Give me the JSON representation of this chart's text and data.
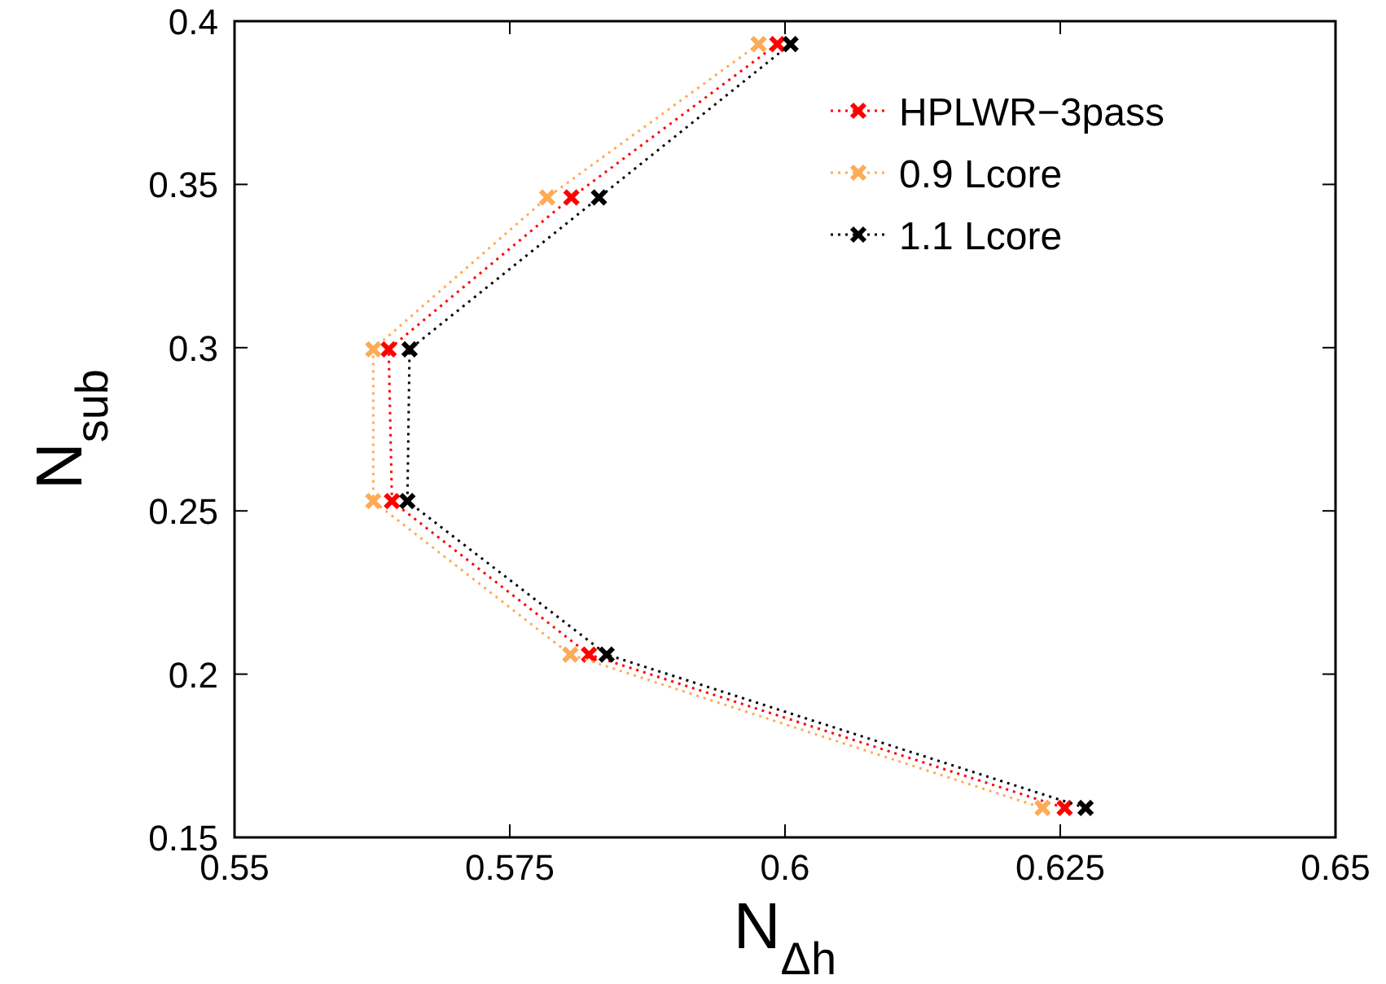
{
  "chart_data": {
    "type": "line",
    "xlabel": "N$_{Δh}$",
    "ylabel": "N$_{sub}$",
    "xlim": [
      0.55,
      0.65
    ],
    "ylim": [
      0.15,
      0.4
    ],
    "xticks": [
      0.55,
      0.575,
      0.6,
      0.625,
      0.65
    ],
    "yticks": [
      0.15,
      0.2,
      0.25,
      0.3,
      0.35,
      0.4
    ],
    "grid": false,
    "legend": "top right",
    "marker": "cross",
    "line_style": "dotted",
    "series": [
      {
        "name": "HPLWR−3pass",
        "color": "#ff0000",
        "x": [
          0.5993,
          0.5806,
          0.564,
          0.5643,
          0.5822,
          0.6254
        ],
        "values": [
          0.393,
          0.346,
          0.2995,
          0.253,
          0.206,
          0.159
        ]
      },
      {
        "name": "0.9 Lcore",
        "color": "#ffaa55",
        "x": [
          0.5976,
          0.5784,
          0.5626,
          0.5626,
          0.5805,
          0.6234
        ],
        "values": [
          0.393,
          0.346,
          0.2995,
          0.253,
          0.206,
          0.159
        ]
      },
      {
        "name": "1.1 Lcore",
        "color": "#000000",
        "x": [
          0.6005,
          0.5831,
          0.5659,
          0.5657,
          0.5838,
          0.6273
        ],
        "values": [
          0.393,
          0.346,
          0.2995,
          0.253,
          0.206,
          0.159
        ]
      }
    ]
  }
}
